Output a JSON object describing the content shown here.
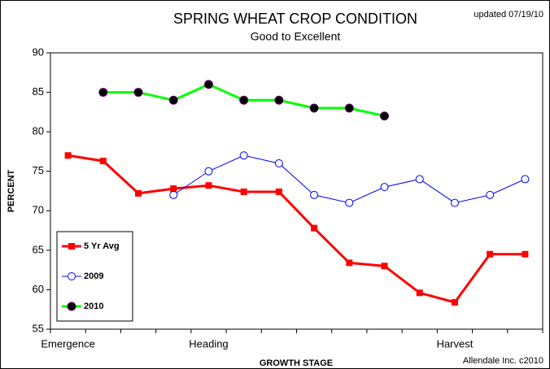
{
  "chart_data": {
    "type": "line",
    "title": "SPRING WHEAT CROP CONDITION",
    "subtitle": "Good to Excellent",
    "note": "updated 07/19/10",
    "source": "Allendale Inc. c2010",
    "x_label": "GROWTH STAGE",
    "y_label": "PERCENT",
    "categories": [
      "Emergence",
      null,
      null,
      null,
      "Heading",
      null,
      null,
      null,
      null,
      null,
      null,
      "Harvest",
      null,
      null
    ],
    "series": [
      {
        "name": "5 Yr Avg",
        "color": "#ff0000",
        "marker": "square",
        "values": [
          77,
          76.3,
          72.2,
          72.8,
          73.2,
          72.4,
          72.4,
          67.8,
          63.4,
          63.0,
          59.6,
          58.4,
          64.5,
          64.5
        ]
      },
      {
        "name": "2009",
        "color": "#0000ff",
        "marker": "open-circle",
        "values": [
          null,
          null,
          null,
          72,
          75,
          77,
          76,
          72,
          71,
          73,
          74,
          71,
          72,
          74
        ]
      },
      {
        "name": "2010",
        "color": "#00ff00",
        "marker": "black-circle",
        "values": [
          null,
          85,
          85,
          84,
          86,
          84,
          84,
          83,
          83,
          82,
          null,
          null,
          null,
          null
        ]
      }
    ],
    "ylim": [
      55,
      90
    ],
    "yticks": [
      55,
      60,
      65,
      70,
      75,
      80,
      85,
      90
    ],
    "grid": false,
    "legend": "lower-left"
  }
}
